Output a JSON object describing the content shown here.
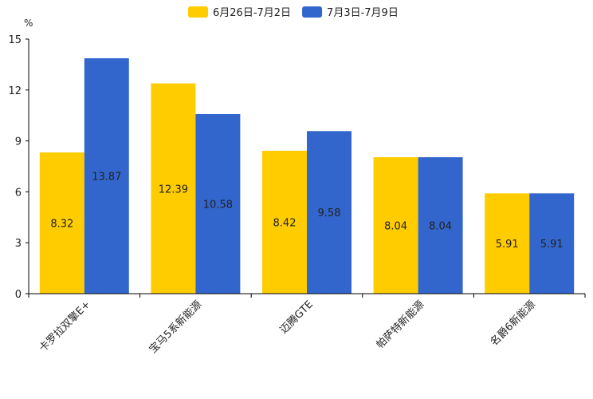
{
  "chart_data": {
    "type": "bar",
    "title": "",
    "ylabel": "%",
    "xlabel": "",
    "ylim": [
      0,
      15
    ],
    "yticks": [
      0,
      3,
      6,
      9,
      12,
      15
    ],
    "grid": false,
    "legend_position": "top-center",
    "categories": [
      "卡罗拉双擎E+",
      "宝马5系新能源",
      "迈腾GTE",
      "帕萨特新能源",
      "名爵6新能源"
    ],
    "series": [
      {
        "name": "6月26日-7月2日",
        "color": "#FFCC00",
        "values": [
          8.32,
          12.39,
          8.42,
          8.04,
          5.91
        ]
      },
      {
        "name": "7月3日-7月9日",
        "color": "#3366CC",
        "values": [
          13.87,
          10.58,
          9.58,
          8.04,
          5.91
        ]
      }
    ]
  }
}
